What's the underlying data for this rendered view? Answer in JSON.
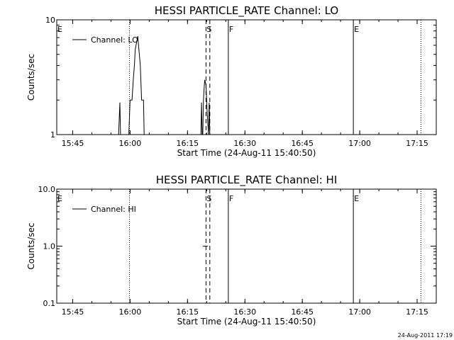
{
  "footer_timestamp": "24-Aug-2011 17:19",
  "chart_data": [
    {
      "type": "line",
      "title": "HESSI PARTICLE_RATE Channel: LO",
      "xlabel": "Start Time (24-Aug-11 15:40:50)",
      "ylabel": "Counts/sec",
      "yscale": "log",
      "xlim": [
        "15:40:50",
        "17:20:00"
      ],
      "ylim": [
        1,
        10
      ],
      "x_ticks": [
        "15:45",
        "16:00",
        "16:15",
        "16:30",
        "16:45",
        "17:00",
        "17:15"
      ],
      "y_ticks": [
        "1",
        "10"
      ],
      "legend": {
        "position": "top-left",
        "entries": [
          "Channel: LO"
        ]
      },
      "series": [
        {
          "name": "Channel: LO",
          "x": [
            "15:56:30",
            "15:57:00",
            "15:57:20",
            "15:57:30",
            "15:57:40",
            "15:59:40",
            "16:00:00",
            "16:00:30",
            "16:00:50",
            "16:01:10",
            "16:01:20",
            "16:01:40",
            "16:02:00",
            "16:02:10",
            "16:02:40",
            "16:03:00",
            "16:03:30",
            "16:03:40",
            "16:18:30",
            "16:18:40",
            "16:18:50",
            "16:19:00",
            "16:19:10",
            "16:19:20",
            "16:19:30",
            "16:19:50",
            "16:20:00",
            "16:20:10",
            "16:20:30",
            "16:20:40",
            "16:20:50"
          ],
          "y": [
            1,
            1,
            1.9,
            1,
            1,
            1,
            2,
            2,
            3,
            4.2,
            5.5,
            6.3,
            7.2,
            6.2,
            4,
            2,
            2,
            1,
            1,
            1.9,
            1,
            1,
            2,
            2.5,
            3,
            2.7,
            2,
            1.5,
            1,
            1.9,
            1
          ]
        }
      ],
      "flags": [
        {
          "x": "15:40:50",
          "label": "E",
          "style": "none"
        },
        {
          "x": "15:59:50",
          "label": "",
          "style": "dotted"
        },
        {
          "x": "16:19:50",
          "label": "S",
          "style": "dashed"
        },
        {
          "x": "16:20:50",
          "label": "",
          "style": "dashed"
        },
        {
          "x": "16:25:40",
          "label": "F",
          "style": "solid"
        },
        {
          "x": "16:58:20",
          "label": "E",
          "style": "solid"
        },
        {
          "x": "17:16:00",
          "label": "",
          "style": "dotted"
        }
      ]
    },
    {
      "type": "line",
      "title": "HESSI PARTICLE_RATE Channel: HI",
      "xlabel": "Start Time (24-Aug-11 15:40:50)",
      "ylabel": "Counts/sec",
      "yscale": "log",
      "xlim": [
        "15:40:50",
        "17:20:00"
      ],
      "ylim": [
        0.1,
        10
      ],
      "x_ticks": [
        "15:45",
        "16:00",
        "16:15",
        "16:30",
        "16:45",
        "17:00",
        "17:15"
      ],
      "y_ticks": [
        "0.1",
        "1.0",
        "10.0"
      ],
      "legend": {
        "position": "top-left",
        "entries": [
          "Channel: HI"
        ]
      },
      "series": [
        {
          "name": "Channel: HI",
          "x": [
            "16:19:00",
            "16:20:20"
          ],
          "y": [
            1,
            1
          ]
        }
      ],
      "flags": [
        {
          "x": "15:40:50",
          "label": "E",
          "style": "none"
        },
        {
          "x": "15:59:50",
          "label": "",
          "style": "dotted"
        },
        {
          "x": "16:19:50",
          "label": "S",
          "style": "dashed"
        },
        {
          "x": "16:20:50",
          "label": "",
          "style": "dashed"
        },
        {
          "x": "16:25:40",
          "label": "F",
          "style": "solid"
        },
        {
          "x": "16:58:20",
          "label": "E",
          "style": "solid"
        },
        {
          "x": "17:16:00",
          "label": "",
          "style": "dotted"
        }
      ]
    }
  ]
}
